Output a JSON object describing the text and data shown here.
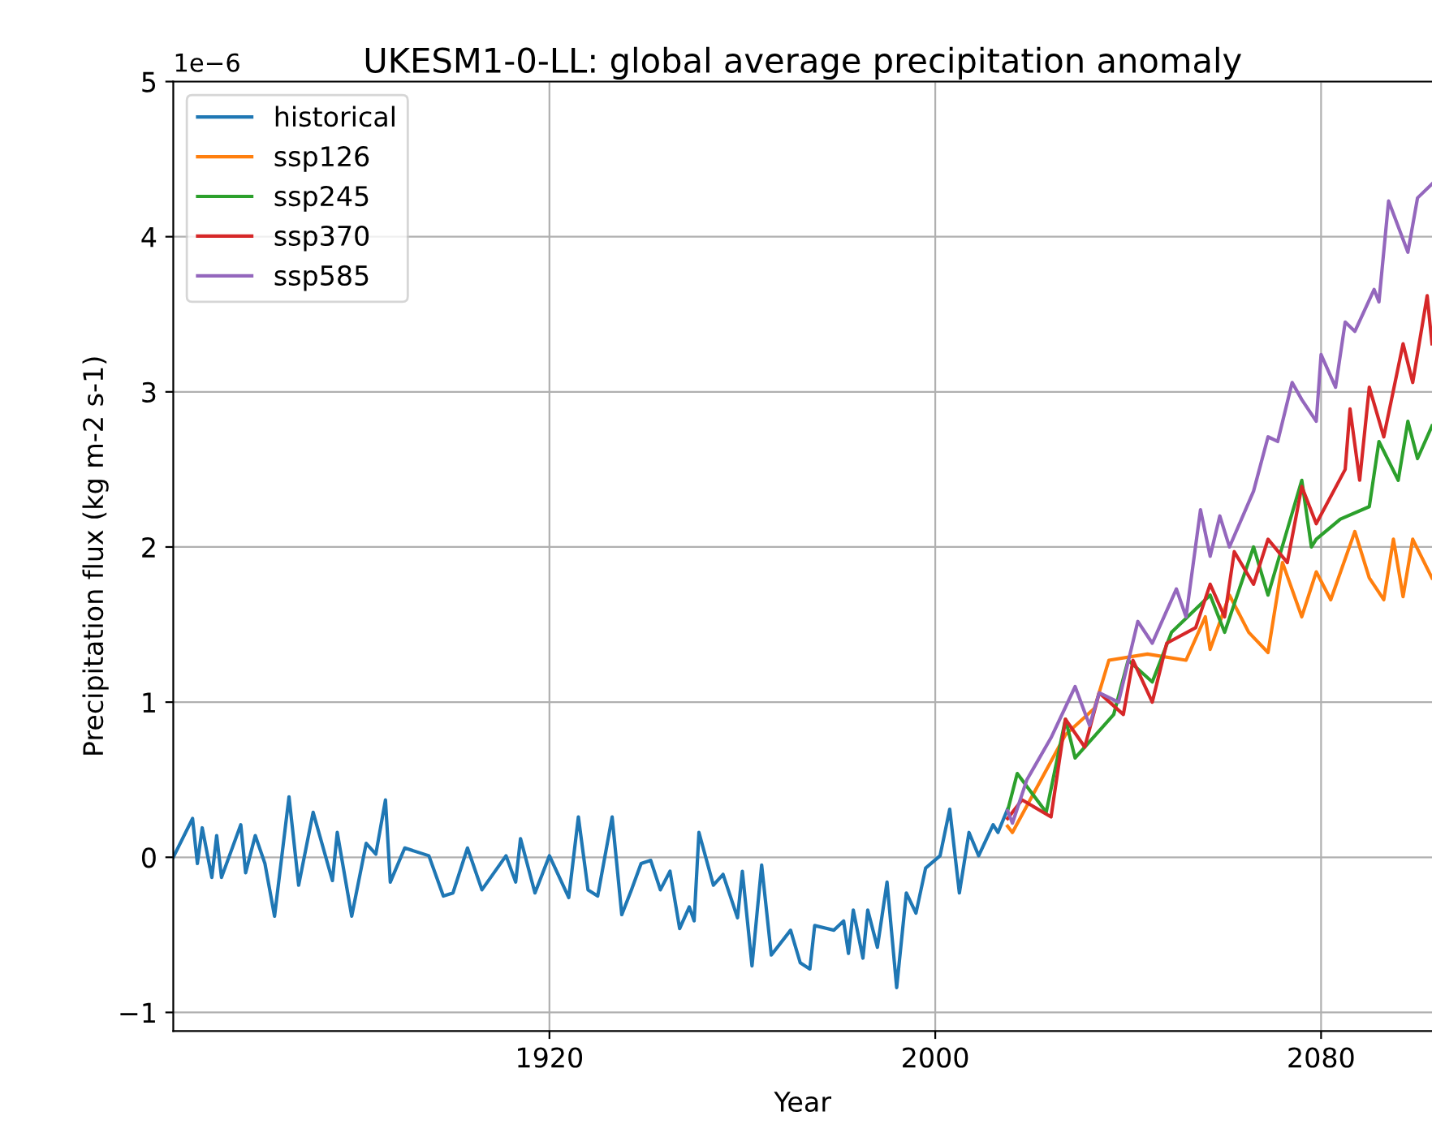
{
  "chart_data": {
    "type": "line",
    "title": "UKESM1-0-LL: global average precipitation anomaly",
    "xlabel": "Year",
    "ylabel": "Precipitation flux (kg m-2 s-1)",
    "annotations": [
      "1e−6"
    ],
    "xlim": [
      1842,
      2103
    ],
    "xticks": [
      1920,
      2000,
      2080
    ],
    "ylim": [
      -1.12,
      5
    ],
    "yticks": [
      {
        "value": -1,
        "label": "−1"
      },
      0,
      1,
      2,
      3,
      4,
      5
    ],
    "grid": true,
    "legend": "top left",
    "series": [
      {
        "name": "historical",
        "color": "#1f77b4",
        "x": [
          1842,
          1846,
          1847,
          1848,
          1850,
          1851,
          1852,
          1856,
          1857,
          1859,
          1861,
          1863,
          1866,
          1868,
          1871,
          1875,
          1876,
          1879,
          1882,
          1884,
          1886,
          1887,
          1890,
          1895,
          1898,
          1900,
          1903,
          1906,
          1911,
          1913,
          1914,
          1917,
          1920,
          1924,
          1926,
          1928,
          1930,
          1933,
          1935,
          1937,
          1939,
          1941,
          1943,
          1945,
          1947,
          1949,
          1950,
          1951,
          1954,
          1956,
          1959,
          1960,
          1962,
          1964,
          1966,
          1970,
          1972,
          1974,
          1975,
          1979,
          1981,
          1982,
          1983,
          1985,
          1986,
          1988,
          1990,
          1992,
          1994,
          1996,
          1998,
          2001,
          2003,
          2005,
          2007,
          2009,
          2012,
          2013,
          2015
        ],
        "values": [
          0.0,
          0.25,
          -0.04,
          0.19,
          -0.13,
          0.14,
          -0.13,
          0.21,
          -0.1,
          0.14,
          -0.04,
          -0.38,
          0.39,
          -0.18,
          0.29,
          -0.15,
          0.16,
          -0.38,
          0.09,
          0.02,
          0.37,
          -0.16,
          0.06,
          0.01,
          -0.25,
          -0.23,
          0.06,
          -0.21,
          0.01,
          -0.16,
          0.12,
          -0.23,
          0.01,
          -0.26,
          0.26,
          -0.21,
          -0.25,
          0.26,
          -0.37,
          -0.21,
          -0.04,
          -0.02,
          -0.21,
          -0.09,
          -0.46,
          -0.32,
          -0.41,
          0.16,
          -0.18,
          -0.11,
          -0.39,
          -0.09,
          -0.7,
          -0.05,
          -0.63,
          -0.47,
          -0.68,
          -0.72,
          -0.44,
          -0.47,
          -0.41,
          -0.62,
          -0.34,
          -0.65,
          -0.34,
          -0.58,
          -0.16,
          -0.84,
          -0.23,
          -0.36,
          -0.07,
          0.01,
          0.31,
          -0.23,
          0.16,
          0.01,
          0.21,
          0.16,
          0.31
        ]
      },
      {
        "name": "ssp126",
        "color": "#ff7f0e",
        "x": [
          2015,
          2016,
          2027,
          2033,
          2036,
          2044,
          2052,
          2056,
          2057,
          2061,
          2065,
          2069,
          2072,
          2076,
          2079,
          2082,
          2087,
          2090,
          2093,
          2095,
          2097,
          2099,
          2103
        ],
        "values": [
          0.2,
          0.16,
          0.79,
          0.96,
          1.27,
          1.31,
          1.27,
          1.55,
          1.34,
          1.69,
          1.45,
          1.32,
          1.9,
          1.55,
          1.84,
          1.66,
          2.1,
          1.8,
          1.66,
          2.05,
          1.68,
          2.05,
          1.8
        ]
      },
      {
        "name": "ssp245",
        "color": "#2ca02c",
        "x": [
          2015,
          2017,
          2023,
          2027,
          2029,
          2037,
          2040,
          2045,
          2049,
          2057,
          2060,
          2066,
          2069,
          2076,
          2078,
          2079,
          2084,
          2090,
          2092,
          2096,
          2098,
          2100,
          2103
        ],
        "values": [
          0.3,
          0.54,
          0.29,
          0.89,
          0.64,
          0.92,
          1.27,
          1.13,
          1.45,
          1.69,
          1.45,
          2.0,
          1.69,
          2.43,
          2.0,
          2.05,
          2.18,
          2.26,
          2.68,
          2.43,
          2.81,
          2.57,
          2.78
        ]
      },
      {
        "name": "ssp370",
        "color": "#d62728",
        "x": [
          2015,
          2018,
          2024,
          2027,
          2031,
          2034,
          2039,
          2041,
          2045,
          2048,
          2054,
          2057,
          2060,
          2062,
          2066,
          2069,
          2073,
          2076,
          2079,
          2085,
          2086,
          2088,
          2090,
          2093,
          2097,
          2099,
          2102,
          2103
        ],
        "values": [
          0.25,
          0.37,
          0.26,
          0.89,
          0.71,
          1.06,
          0.92,
          1.27,
          1.0,
          1.38,
          1.48,
          1.76,
          1.55,
          1.97,
          1.76,
          2.05,
          1.9,
          2.39,
          2.15,
          2.5,
          2.89,
          2.43,
          3.03,
          2.71,
          3.31,
          3.06,
          3.62,
          3.31
        ]
      },
      {
        "name": "ssp585",
        "color": "#9467bd",
        "x": [
          2015,
          2016,
          2019,
          2024,
          2029,
          2032,
          2034,
          2038,
          2042,
          2045,
          2050,
          2052,
          2055,
          2057,
          2059,
          2061,
          2066,
          2069,
          2071,
          2074,
          2076,
          2079,
          2080,
          2083,
          2085,
          2087,
          2091,
          2092,
          2094,
          2098,
          2100,
          2103
        ],
        "values": [
          0.3,
          0.22,
          0.5,
          0.77,
          1.1,
          0.85,
          1.06,
          1.0,
          1.52,
          1.38,
          1.73,
          1.55,
          2.24,
          1.94,
          2.2,
          2.0,
          2.36,
          2.71,
          2.68,
          3.06,
          2.95,
          2.81,
          3.24,
          3.03,
          3.45,
          3.39,
          3.66,
          3.58,
          4.23,
          3.9,
          4.25,
          4.34
        ]
      }
    ]
  }
}
